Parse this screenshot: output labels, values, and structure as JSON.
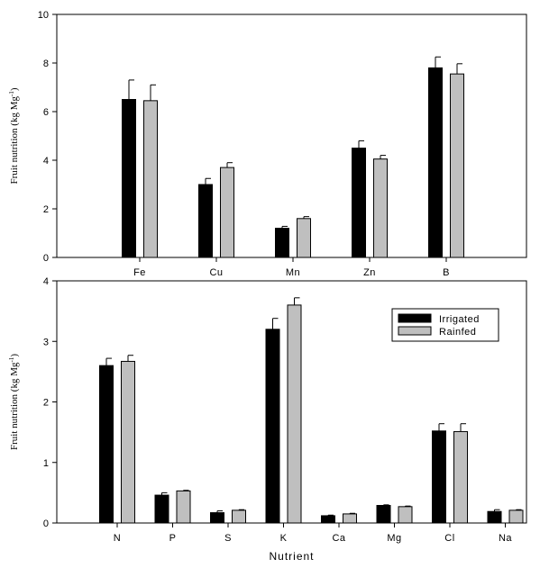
{
  "colors": {
    "irrigated": "#000000",
    "rainfed": "#bfbfbf"
  },
  "chart_data": [
    {
      "type": "bar",
      "title": "",
      "xlabel": "",
      "ylabel": "Fruit nutrition (kg Mg",
      "ylabel_sup": "-1",
      "ylabel_close": ")",
      "ylim": [
        0,
        10
      ],
      "yticks": [
        "0",
        "2",
        "4",
        "6",
        "8",
        "10"
      ],
      "categories": [
        "Fe",
        "Cu",
        "Mn",
        "Zn",
        "B"
      ],
      "legend": "none",
      "series": [
        {
          "name": "Irrigated",
          "values": [
            6.5,
            3.0,
            1.2,
            4.5,
            7.8
          ],
          "errors": [
            0.8,
            0.25,
            0.08,
            0.3,
            0.45
          ]
        },
        {
          "name": "Rainfed",
          "values": [
            6.45,
            3.7,
            1.6,
            4.05,
            7.55
          ],
          "errors": [
            0.65,
            0.2,
            0.08,
            0.15,
            0.42
          ]
        }
      ]
    },
    {
      "type": "bar",
      "title": "",
      "xlabel": "Nutrient",
      "ylabel": "Fruit nutrition (kg Mg",
      "ylabel_sup": "-1",
      "ylabel_close": ")",
      "ylim": [
        0,
        4
      ],
      "yticks": [
        "0",
        "1",
        "2",
        "3",
        "4"
      ],
      "categories": [
        "N",
        "P",
        "S",
        "K",
        "Ca",
        "Mg",
        "Cl",
        "Na"
      ],
      "legend": "top-right",
      "series": [
        {
          "name": "Irrigated",
          "values": [
            2.6,
            0.46,
            0.17,
            3.2,
            0.12,
            0.29,
            1.52,
            0.19
          ],
          "errors": [
            0.12,
            0.04,
            0.03,
            0.18,
            0.01,
            0.01,
            0.12,
            0.03
          ]
        },
        {
          "name": "Rainfed",
          "values": [
            2.67,
            0.53,
            0.21,
            3.6,
            0.15,
            0.27,
            1.51,
            0.21
          ],
          "errors": [
            0.1,
            0.01,
            0.01,
            0.12,
            0.01,
            0.01,
            0.13,
            0.01
          ]
        }
      ]
    }
  ]
}
